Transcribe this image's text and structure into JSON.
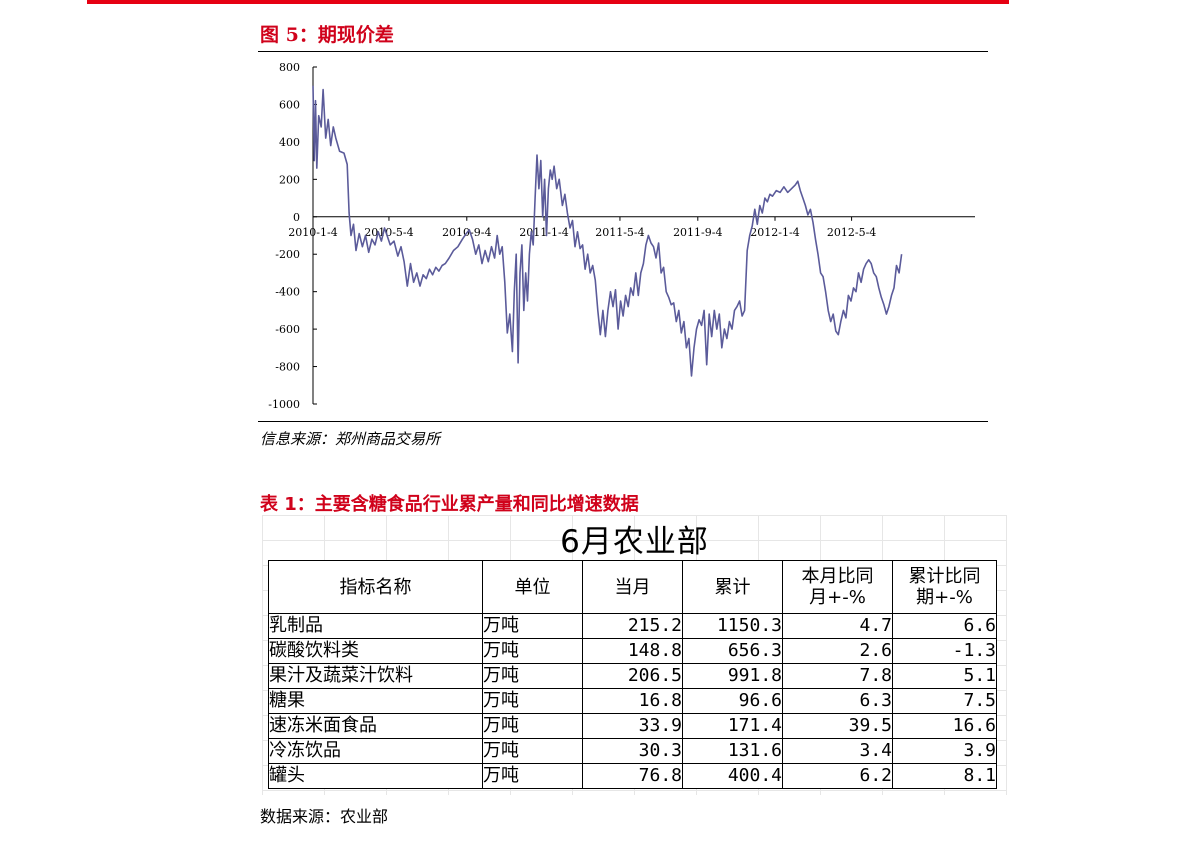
{
  "figure": {
    "title": "图 5：期现价差",
    "source": "信息来源：郑州商品交易所"
  },
  "chart_data": {
    "type": "line",
    "title": "",
    "xlabel": "",
    "ylabel": "",
    "ylim": [
      -1000,
      800
    ],
    "yticks": [
      800,
      600,
      400,
      200,
      0,
      -200,
      -400,
      -600,
      -800,
      -1000
    ],
    "ytick_labels": [
      "800",
      "600",
      "400",
      "200",
      "0",
      "-200",
      "-400",
      "-600",
      "-800",
      "-1000"
    ],
    "x_range": [
      "2010-01-04",
      "2012-11-15"
    ],
    "xtick_dates": [
      "2010-01-04",
      "2010-05-04",
      "2010-09-04",
      "2011-01-04",
      "2011-05-04",
      "2011-09-04",
      "2012-01-04",
      "2012-05-04"
    ],
    "xtick_labels": [
      "2010-1-4",
      "2010-5-4",
      "2010-9-4",
      "2011-1-4",
      "2011-5-4",
      "2011-9-4",
      "2012-1-4",
      "2012-5-4"
    ],
    "grid": false,
    "legend": "none",
    "series_color": "#5b5b9a",
    "series": [
      {
        "values": [
          [
            "2010-01-04",
            700
          ],
          [
            "2010-01-06",
            300
          ],
          [
            "2010-01-08",
            620
          ],
          [
            "2010-01-10",
            260
          ],
          [
            "2010-01-13",
            540
          ],
          [
            "2010-01-17",
            480
          ],
          [
            "2010-01-20",
            680
          ],
          [
            "2010-01-24",
            420
          ],
          [
            "2010-01-28",
            520
          ],
          [
            "2010-02-01",
            380
          ],
          [
            "2010-02-05",
            480
          ],
          [
            "2010-02-09",
            420
          ],
          [
            "2010-02-15",
            350
          ],
          [
            "2010-02-22",
            340
          ],
          [
            "2010-02-27",
            280
          ],
          [
            "2010-03-02",
            20
          ],
          [
            "2010-03-05",
            -100
          ],
          [
            "2010-03-09",
            -40
          ],
          [
            "2010-03-13",
            -180
          ],
          [
            "2010-03-18",
            -90
          ],
          [
            "2010-03-23",
            -160
          ],
          [
            "2010-03-28",
            -100
          ],
          [
            "2010-04-02",
            -190
          ],
          [
            "2010-04-07",
            -120
          ],
          [
            "2010-04-12",
            -150
          ],
          [
            "2010-04-17",
            -80
          ],
          [
            "2010-04-22",
            -130
          ],
          [
            "2010-04-27",
            -60
          ],
          [
            "2010-05-02",
            -110
          ],
          [
            "2010-05-06",
            -150
          ],
          [
            "2010-05-12",
            -130
          ],
          [
            "2010-05-18",
            -210
          ],
          [
            "2010-05-23",
            -160
          ],
          [
            "2010-05-28",
            -240
          ],
          [
            "2010-06-02",
            -370
          ],
          [
            "2010-06-07",
            -250
          ],
          [
            "2010-06-12",
            -350
          ],
          [
            "2010-06-17",
            -300
          ],
          [
            "2010-06-22",
            -370
          ],
          [
            "2010-06-27",
            -310
          ],
          [
            "2010-07-02",
            -330
          ],
          [
            "2010-07-07",
            -280
          ],
          [
            "2010-07-12",
            -310
          ],
          [
            "2010-07-17",
            -270
          ],
          [
            "2010-07-22",
            -290
          ],
          [
            "2010-07-27",
            -260
          ],
          [
            "2010-08-01",
            -250
          ],
          [
            "2010-08-07",
            -220
          ],
          [
            "2010-08-14",
            -180
          ],
          [
            "2010-08-21",
            -160
          ],
          [
            "2010-08-28",
            -120
          ],
          [
            "2010-09-03",
            -90
          ],
          [
            "2010-09-08",
            -70
          ],
          [
            "2010-09-13",
            -120
          ],
          [
            "2010-09-18",
            -200
          ],
          [
            "2010-09-23",
            -150
          ],
          [
            "2010-09-28",
            -250
          ],
          [
            "2010-10-03",
            -180
          ],
          [
            "2010-10-08",
            -240
          ],
          [
            "2010-10-13",
            -160
          ],
          [
            "2010-10-18",
            -220
          ],
          [
            "2010-10-22",
            -100
          ],
          [
            "2010-10-26",
            -200
          ],
          [
            "2010-10-30",
            -160
          ],
          [
            "2010-11-03",
            -350
          ],
          [
            "2010-11-07",
            -620
          ],
          [
            "2010-11-11",
            -520
          ],
          [
            "2010-11-15",
            -720
          ],
          [
            "2010-11-18",
            -400
          ],
          [
            "2010-11-21",
            -200
          ],
          [
            "2010-11-24",
            -780
          ],
          [
            "2010-11-27",
            -300
          ],
          [
            "2010-11-30",
            -150
          ],
          [
            "2010-12-03",
            -500
          ],
          [
            "2010-12-06",
            -300
          ],
          [
            "2010-12-09",
            -450
          ],
          [
            "2010-12-12",
            -200
          ],
          [
            "2010-12-15",
            -80
          ],
          [
            "2010-12-18",
            -150
          ],
          [
            "2010-12-21",
            100
          ],
          [
            "2010-12-24",
            330
          ],
          [
            "2010-12-27",
            150
          ],
          [
            "2010-12-30",
            300
          ],
          [
            "2011-01-02",
            0
          ],
          [
            "2011-01-05",
            200
          ],
          [
            "2011-01-08",
            -100
          ],
          [
            "2011-01-11",
            150
          ],
          [
            "2011-01-14",
            250
          ],
          [
            "2011-01-17",
            200
          ],
          [
            "2011-01-20",
            270
          ],
          [
            "2011-01-24",
            150
          ],
          [
            "2011-01-28",
            200
          ],
          [
            "2011-02-02",
            60
          ],
          [
            "2011-02-06",
            120
          ],
          [
            "2011-02-10",
            20
          ],
          [
            "2011-02-14",
            -60
          ],
          [
            "2011-02-18",
            -20
          ],
          [
            "2011-02-22",
            -160
          ],
          [
            "2011-02-26",
            -80
          ],
          [
            "2011-03-02",
            -170
          ],
          [
            "2011-03-06",
            -150
          ],
          [
            "2011-03-10",
            -280
          ],
          [
            "2011-03-14",
            -200
          ],
          [
            "2011-03-18",
            -300
          ],
          [
            "2011-03-22",
            -260
          ],
          [
            "2011-03-26",
            -340
          ],
          [
            "2011-03-30",
            -500
          ],
          [
            "2011-04-03",
            -630
          ],
          [
            "2011-04-07",
            -500
          ],
          [
            "2011-04-11",
            -640
          ],
          [
            "2011-04-15",
            -500
          ],
          [
            "2011-04-19",
            -400
          ],
          [
            "2011-04-23",
            -480
          ],
          [
            "2011-04-27",
            -390
          ],
          [
            "2011-05-01",
            -600
          ],
          [
            "2011-05-05",
            -450
          ],
          [
            "2011-05-09",
            -530
          ],
          [
            "2011-05-13",
            -420
          ],
          [
            "2011-05-17",
            -480
          ],
          [
            "2011-05-21",
            -380
          ],
          [
            "2011-05-25",
            -420
          ],
          [
            "2011-05-29",
            -300
          ],
          [
            "2011-06-02",
            -420
          ],
          [
            "2011-06-06",
            -300
          ],
          [
            "2011-06-10",
            -250
          ],
          [
            "2011-06-14",
            -150
          ],
          [
            "2011-06-18",
            -100
          ],
          [
            "2011-06-22",
            -140
          ],
          [
            "2011-06-26",
            -160
          ],
          [
            "2011-06-30",
            -220
          ],
          [
            "2011-07-04",
            -140
          ],
          [
            "2011-07-08",
            -300
          ],
          [
            "2011-07-12",
            -270
          ],
          [
            "2011-07-16",
            -400
          ],
          [
            "2011-07-20",
            -430
          ],
          [
            "2011-07-24",
            -470
          ],
          [
            "2011-07-28",
            -460
          ],
          [
            "2011-08-01",
            -560
          ],
          [
            "2011-08-05",
            -500
          ],
          [
            "2011-08-09",
            -620
          ],
          [
            "2011-08-13",
            -560
          ],
          [
            "2011-08-17",
            -700
          ],
          [
            "2011-08-21",
            -650
          ],
          [
            "2011-08-25",
            -850
          ],
          [
            "2011-08-29",
            -700
          ],
          [
            "2011-09-02",
            -600
          ],
          [
            "2011-09-06",
            -550
          ],
          [
            "2011-09-10",
            -580
          ],
          [
            "2011-09-14",
            -500
          ],
          [
            "2011-09-18",
            -790
          ],
          [
            "2011-09-22",
            -520
          ],
          [
            "2011-09-26",
            -640
          ],
          [
            "2011-09-30",
            -500
          ],
          [
            "2011-10-04",
            -600
          ],
          [
            "2011-10-08",
            -520
          ],
          [
            "2011-10-12",
            -700
          ],
          [
            "2011-10-16",
            -600
          ],
          [
            "2011-10-20",
            -650
          ],
          [
            "2011-10-24",
            -560
          ],
          [
            "2011-10-28",
            -600
          ],
          [
            "2011-11-01",
            -500
          ],
          [
            "2011-11-05",
            -480
          ],
          [
            "2011-11-09",
            -450
          ],
          [
            "2011-11-13",
            -530
          ],
          [
            "2011-11-17",
            -500
          ],
          [
            "2011-11-21",
            -180
          ],
          [
            "2011-11-25",
            -100
          ],
          [
            "2011-11-29",
            -50
          ],
          [
            "2011-12-03",
            40
          ],
          [
            "2011-12-07",
            -40
          ],
          [
            "2011-12-11",
            60
          ],
          [
            "2011-12-15",
            20
          ],
          [
            "2011-12-19",
            100
          ],
          [
            "2011-12-23",
            80
          ],
          [
            "2011-12-27",
            120
          ],
          [
            "2011-12-31",
            110
          ],
          [
            "2012-01-06",
            140
          ],
          [
            "2012-01-12",
            130
          ],
          [
            "2012-01-18",
            160
          ],
          [
            "2012-01-24",
            130
          ],
          [
            "2012-01-30",
            150
          ],
          [
            "2012-02-05",
            170
          ],
          [
            "2012-02-09",
            190
          ],
          [
            "2012-02-13",
            140
          ],
          [
            "2012-02-17",
            100
          ],
          [
            "2012-02-21",
            60
          ],
          [
            "2012-02-25",
            10
          ],
          [
            "2012-02-29",
            40
          ],
          [
            "2012-03-04",
            -30
          ],
          [
            "2012-03-08",
            -120
          ],
          [
            "2012-03-12",
            -200
          ],
          [
            "2012-03-16",
            -300
          ],
          [
            "2012-03-20",
            -320
          ],
          [
            "2012-03-24",
            -400
          ],
          [
            "2012-03-28",
            -500
          ],
          [
            "2012-04-01",
            -560
          ],
          [
            "2012-04-05",
            -520
          ],
          [
            "2012-04-09",
            -610
          ],
          [
            "2012-04-13",
            -630
          ],
          [
            "2012-04-17",
            -560
          ],
          [
            "2012-04-21",
            -500
          ],
          [
            "2012-04-25",
            -540
          ],
          [
            "2012-04-29",
            -420
          ],
          [
            "2012-05-03",
            -450
          ],
          [
            "2012-05-07",
            -380
          ],
          [
            "2012-05-11",
            -400
          ],
          [
            "2012-05-15",
            -300
          ],
          [
            "2012-05-19",
            -350
          ],
          [
            "2012-05-23",
            -280
          ],
          [
            "2012-05-27",
            -250
          ],
          [
            "2012-05-31",
            -230
          ],
          [
            "2012-06-04",
            -250
          ],
          [
            "2012-06-08",
            -300
          ],
          [
            "2012-06-12",
            -320
          ],
          [
            "2012-06-16",
            -380
          ],
          [
            "2012-06-20",
            -430
          ],
          [
            "2012-06-24",
            -470
          ],
          [
            "2012-06-28",
            -520
          ],
          [
            "2012-07-02",
            -480
          ],
          [
            "2012-07-06",
            -420
          ],
          [
            "2012-07-10",
            -380
          ],
          [
            "2012-07-14",
            -260
          ],
          [
            "2012-07-18",
            -300
          ],
          [
            "2012-07-22",
            -200
          ]
        ]
      }
    ]
  },
  "table": {
    "title": "表 1：主要含糖食品行业累产量和同比增速数据",
    "sheet_title": "6月农业部",
    "headers": [
      "指标名称",
      "单位",
      "当月",
      "累计",
      "本月比同\n月+-%",
      "累计比同\n期+-%"
    ],
    "rows": [
      [
        "乳制品",
        "万吨",
        "215.2",
        "1150.3",
        "4.7",
        "6.6"
      ],
      [
        "碳酸饮料类",
        "万吨",
        "148.8",
        "656.3",
        "2.6",
        "-1.3"
      ],
      [
        "果汁及蔬菜汁饮料",
        "万吨",
        "206.5",
        "991.8",
        "7.8",
        "5.1"
      ],
      [
        "糖果",
        "万吨",
        "16.8",
        "96.6",
        "6.3",
        "7.5"
      ],
      [
        "速冻米面食品",
        "万吨",
        "33.9",
        "171.4",
        "39.5",
        "16.6"
      ],
      [
        "冷冻饮品",
        "万吨",
        "30.3",
        "131.6",
        "3.4",
        "3.9"
      ],
      [
        "罐头",
        "万吨",
        "76.8",
        "400.4",
        "6.2",
        "8.1"
      ]
    ],
    "source": "数据来源：农业部"
  },
  "colors": {
    "accent_red": "#e60012",
    "title_red": "#d0021b"
  }
}
